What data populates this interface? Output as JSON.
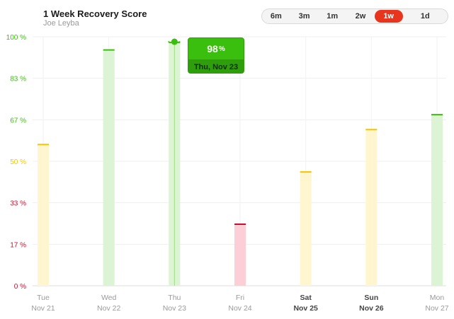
{
  "header": {
    "title": "1 Week Recovery Score",
    "subtitle": "Joe Leyba"
  },
  "range_selector": {
    "options": [
      "6m",
      "3m",
      "1m",
      "2w",
      "1w",
      "1d"
    ],
    "active": "1w"
  },
  "tooltip": {
    "value": "98",
    "unit": "%",
    "date": "Thu, Nov 23"
  },
  "colors": {
    "green": "#3bbf0e",
    "yellow": "#f5c400",
    "red": "#c8102e",
    "green_fill": "#dcf3d4",
    "yellow_fill": "#fff6cf",
    "red_fill": "#fbcfd5",
    "accent": "#e8351e"
  },
  "chart_data": {
    "type": "bar",
    "categories": [
      {
        "day": "Tue",
        "date": "Nov 21"
      },
      {
        "day": "Wed",
        "date": "Nov 22"
      },
      {
        "day": "Thu",
        "date": "Nov 23"
      },
      {
        "day": "Fri",
        "date": "Nov 24"
      },
      {
        "day": "Sat",
        "date": "Nov 25"
      },
      {
        "day": "Sun",
        "date": "Nov 26"
      },
      {
        "day": "Mon",
        "date": "Nov 27"
      }
    ],
    "values": [
      57,
      95,
      98,
      25,
      46,
      63,
      69
    ],
    "zones": [
      "yellow",
      "green",
      "green",
      "red",
      "yellow",
      "yellow",
      "green"
    ],
    "y_ticks": [
      {
        "label": "0 %",
        "value": 0,
        "zone": "red"
      },
      {
        "label": "17 %",
        "value": 16.67,
        "zone": "red"
      },
      {
        "label": "33 %",
        "value": 33.33,
        "zone": "red"
      },
      {
        "label": "50 %",
        "value": 50,
        "zone": "yellow"
      },
      {
        "label": "67 %",
        "value": 66.67,
        "zone": "green"
      },
      {
        "label": "83 %",
        "value": 83.33,
        "zone": "green"
      },
      {
        "label": "100 %",
        "value": 100,
        "zone": "green"
      }
    ],
    "ylim": [
      0,
      100
    ],
    "grid": true,
    "highlighted": "Thu"
  }
}
